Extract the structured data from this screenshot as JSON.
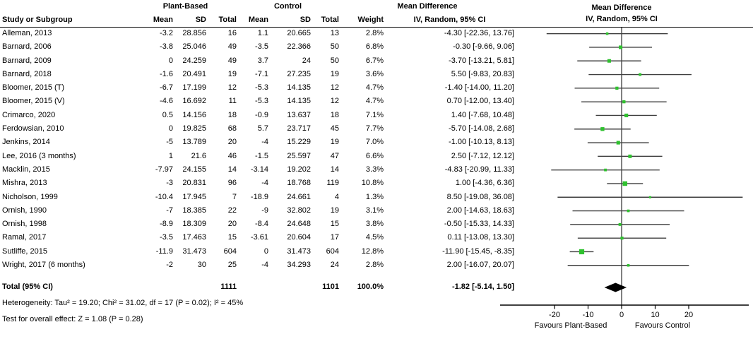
{
  "labels": {
    "group_plant": "Plant-Based",
    "group_control": "Control",
    "md_col_title": "Mean Difference",
    "md_col_sub": "IV, Random, 95% CI",
    "plot_title": "Mean Difference",
    "plot_sub": "IV, Random, 95% CI",
    "study_header": "Study or Subgroup",
    "mean_header": "Mean",
    "sd_header": "SD",
    "total_header": "Total",
    "weight_header": "Weight",
    "total_row_label": "Total (95% CI)",
    "heterogeneity": "Heterogeneity: Tau² = 19.20; Chi² = 31.02, df = 17 (P = 0.02); I² = 45%",
    "overall_effect": "Test for overall effect: Z = 1.08 (P = 0.28)",
    "favours_left": "Favours Plant-Based",
    "favours_right": "Favours Control"
  },
  "colors": {
    "marker_green": "#2fc12f",
    "ci_line": "#404040",
    "zero_line": "#808080",
    "diamond": "#000000",
    "axis": "#000000"
  },
  "chart_data": {
    "type": "forest",
    "effect_measure": "Mean Difference",
    "model": "IV, Random, 95% CI",
    "groups": {
      "experimental": "Plant-Based",
      "control": "Control"
    },
    "studies": [
      {
        "name": "Alleman, 2013",
        "exp": {
          "mean": "-3.2",
          "sd": "28.856",
          "total": "16"
        },
        "ctrl": {
          "mean": "1.1",
          "sd": "20.665",
          "total": "13"
        },
        "weight": "2.8%",
        "ci_label": "-4.30 [-22.36, 13.76]",
        "est": -4.3,
        "lo": -22.36,
        "hi": 13.76
      },
      {
        "name": "Barnard, 2006",
        "exp": {
          "mean": "-3.8",
          "sd": "25.046",
          "total": "49"
        },
        "ctrl": {
          "mean": "-3.5",
          "sd": "22.366",
          "total": "50"
        },
        "weight": "6.8%",
        "ci_label": "-0.30 [-9.66, 9.06]",
        "est": -0.3,
        "lo": -9.66,
        "hi": 9.06
      },
      {
        "name": "Barnard, 2009",
        "exp": {
          "mean": "0",
          "sd": "24.259",
          "total": "49"
        },
        "ctrl": {
          "mean": "3.7",
          "sd": "24",
          "total": "50"
        },
        "weight": "6.7%",
        "ci_label": "-3.70 [-13.21, 5.81]",
        "est": -3.7,
        "lo": -13.21,
        "hi": 5.81
      },
      {
        "name": "Barnard, 2018",
        "exp": {
          "mean": "-1.6",
          "sd": "20.491",
          "total": "19"
        },
        "ctrl": {
          "mean": "-7.1",
          "sd": "27.235",
          "total": "19"
        },
        "weight": "3.6%",
        "ci_label": "5.50 [-9.83, 20.83]",
        "est": 5.5,
        "lo": -9.83,
        "hi": 20.83
      },
      {
        "name": "Bloomer, 2015 (T)",
        "exp": {
          "mean": "-6.7",
          "sd": "17.199",
          "total": "12"
        },
        "ctrl": {
          "mean": "-5.3",
          "sd": "14.135",
          "total": "12"
        },
        "weight": "4.7%",
        "ci_label": "-1.40 [-14.00, 11.20]",
        "est": -1.4,
        "lo": -14.0,
        "hi": 11.2
      },
      {
        "name": "Bloomer, 2015 (V)",
        "exp": {
          "mean": "-4.6",
          "sd": "16.692",
          "total": "11"
        },
        "ctrl": {
          "mean": "-5.3",
          "sd": "14.135",
          "total": "12"
        },
        "weight": "4.7%",
        "ci_label": "0.70 [-12.00, 13.40]",
        "est": 0.7,
        "lo": -12.0,
        "hi": 13.4
      },
      {
        "name": "Crimarco, 2020",
        "exp": {
          "mean": "0.5",
          "sd": "14.156",
          "total": "18"
        },
        "ctrl": {
          "mean": "-0.9",
          "sd": "13.637",
          "total": "18"
        },
        "weight": "7.1%",
        "ci_label": "1.40 [-7.68, 10.48]",
        "est": 1.4,
        "lo": -7.68,
        "hi": 10.48
      },
      {
        "name": "Ferdowsian, 2010",
        "exp": {
          "mean": "0",
          "sd": "19.825",
          "total": "68"
        },
        "ctrl": {
          "mean": "5.7",
          "sd": "23.717",
          "total": "45"
        },
        "weight": "7.7%",
        "ci_label": "-5.70 [-14.08, 2.68]",
        "est": -5.7,
        "lo": -14.08,
        "hi": 2.68
      },
      {
        "name": "Jenkins, 2014",
        "exp": {
          "mean": "-5",
          "sd": "13.789",
          "total": "20"
        },
        "ctrl": {
          "mean": "-4",
          "sd": "15.229",
          "total": "19"
        },
        "weight": "7.0%",
        "ci_label": "-1.00 [-10.13, 8.13]",
        "est": -1.0,
        "lo": -10.13,
        "hi": 8.13
      },
      {
        "name": "Lee, 2016 (3 months)",
        "exp": {
          "mean": "1",
          "sd": "21.6",
          "total": "46"
        },
        "ctrl": {
          "mean": "-1.5",
          "sd": "25.597",
          "total": "47"
        },
        "weight": "6.6%",
        "ci_label": "2.50 [-7.12, 12.12]",
        "est": 2.5,
        "lo": -7.12,
        "hi": 12.12
      },
      {
        "name": "Macklin, 2015",
        "exp": {
          "mean": "-7.97",
          "sd": "24.155",
          "total": "14"
        },
        "ctrl": {
          "mean": "-3.14",
          "sd": "19.202",
          "total": "14"
        },
        "weight": "3.3%",
        "ci_label": "-4.83 [-20.99, 11.33]",
        "est": -4.83,
        "lo": -20.99,
        "hi": 11.33
      },
      {
        "name": "Mishra, 2013",
        "exp": {
          "mean": "-3",
          "sd": "20.831",
          "total": "96"
        },
        "ctrl": {
          "mean": "-4",
          "sd": "18.768",
          "total": "119"
        },
        "weight": "10.8%",
        "ci_label": "1.00 [-4.36, 6.36]",
        "est": 1.0,
        "lo": -4.36,
        "hi": 6.36
      },
      {
        "name": "Nicholson, 1999",
        "exp": {
          "mean": "-10.4",
          "sd": "17.945",
          "total": "7"
        },
        "ctrl": {
          "mean": "-18.9",
          "sd": "24.661",
          "total": "4"
        },
        "weight": "1.3%",
        "ci_label": "8.50 [-19.08, 36.08]",
        "est": 8.5,
        "lo": -19.08,
        "hi": 36.08
      },
      {
        "name": "Ornish, 1990",
        "exp": {
          "mean": "-7",
          "sd": "18.385",
          "total": "22"
        },
        "ctrl": {
          "mean": "-9",
          "sd": "32.802",
          "total": "19"
        },
        "weight": "3.1%",
        "ci_label": "2.00 [-14.63, 18.63]",
        "est": 2.0,
        "lo": -14.63,
        "hi": 18.63
      },
      {
        "name": "Ornish, 1998",
        "exp": {
          "mean": "-8.9",
          "sd": "18.309",
          "total": "20"
        },
        "ctrl": {
          "mean": "-8.4",
          "sd": "24.648",
          "total": "15"
        },
        "weight": "3.8%",
        "ci_label": "-0.50 [-15.33, 14.33]",
        "est": -0.5,
        "lo": -15.33,
        "hi": 14.33
      },
      {
        "name": "Ramal, 2017",
        "exp": {
          "mean": "-3.5",
          "sd": "17.463",
          "total": "15"
        },
        "ctrl": {
          "mean": "-3.61",
          "sd": "20.604",
          "total": "17"
        },
        "weight": "4.5%",
        "ci_label": "0.11 [-13.08, 13.30]",
        "est": 0.11,
        "lo": -13.08,
        "hi": 13.3
      },
      {
        "name": "Sutliffe, 2015",
        "exp": {
          "mean": "-11.9",
          "sd": "31.473",
          "total": "604"
        },
        "ctrl": {
          "mean": "0",
          "sd": "31.473",
          "total": "604"
        },
        "weight": "12.8%",
        "ci_label": "-11.90 [-15.45, -8.35]",
        "est": -11.9,
        "lo": -15.45,
        "hi": -8.35
      },
      {
        "name": "Wright, 2017 (6 months)",
        "exp": {
          "mean": "-2",
          "sd": "30",
          "total": "25"
        },
        "ctrl": {
          "mean": "-4",
          "sd": "34.293",
          "total": "24"
        },
        "weight": "2.8%",
        "ci_label": "2.00 [-16.07, 20.07]",
        "est": 2.0,
        "lo": -16.07,
        "hi": 20.07
      }
    ],
    "total": {
      "label": "Total (95% CI)",
      "exp_total": "1111",
      "ctrl_total": "1101",
      "weight": "100.0%",
      "ci_label": "-1.82 [-5.14, 1.50]",
      "est": -1.82,
      "lo": -5.14,
      "hi": 1.5
    },
    "heterogeneity": "Heterogeneity: Tau² = 19.20; Chi² = 31.02, df = 17 (P = 0.02); I² = 45%",
    "overall_effect": "Test for overall effect: Z = 1.08 (P = 0.28)",
    "xaxis": {
      "ticks": [
        -20,
        -10,
        0,
        10,
        20
      ],
      "left_label": "Favours Plant-Based",
      "right_label": "Favours Control"
    }
  }
}
